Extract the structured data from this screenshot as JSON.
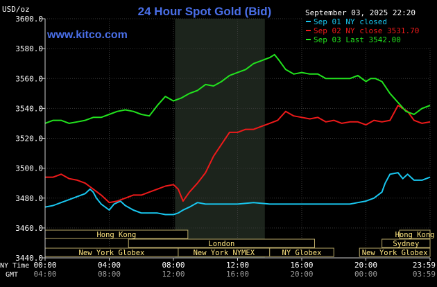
{
  "header": {
    "title": "24 Hour Spot Gold (Bid)",
    "unit": "USD/oz",
    "watermark": "www.kitco.com",
    "timestamp": "September 03, 2025 22:20"
  },
  "legend": [
    {
      "label": "Sep 01 NY closed",
      "color": "#19c7f0"
    },
    {
      "label": "Sep 02 NY close 3531.70",
      "color": "#ee1a1a"
    },
    {
      "label": "Sep 03 Last 3542.00",
      "color": "#22e31e"
    }
  ],
  "axis_labels": {
    "row1": "NY Time",
    "row2": "GMT"
  },
  "chart_data": {
    "type": "line",
    "title": "24 Hour Spot Gold (Bid)",
    "ylabel": "USD/oz",
    "ylim": [
      3440,
      3600
    ],
    "xlim": [
      0,
      24
    ],
    "grid": true,
    "legend_position": "top-right",
    "yticks": [
      "3600.0",
      "3580.0",
      "3560.0",
      "3540.0",
      "3520.0",
      "3500.0",
      "3480.0",
      "3460.0",
      "3440.0"
    ],
    "ytick_values": [
      3600,
      3580,
      3560,
      3540,
      3520,
      3500,
      3480,
      3460,
      3440
    ],
    "xtick_values": [
      0,
      4,
      8,
      12,
      16,
      20,
      24
    ],
    "xticks_ny": [
      "00:00",
      "04:00",
      "08:00",
      "12:00",
      "16:00",
      "20:00",
      "23:59"
    ],
    "xticks_gmt": [
      "04:00",
      "08:00",
      "12:00",
      "16:00",
      "20:00",
      "00:00",
      "03:59"
    ],
    "highlight_band": [
      8.1,
      13.7
    ],
    "series": [
      {
        "name": "Sep 01 NY closed",
        "color": "#19c7f0",
        "x": [
          0,
          0.5,
          1,
          1.5,
          2,
          2.5,
          2.8,
          3,
          3.2,
          3.5,
          4,
          4.3,
          4.7,
          5,
          5.5,
          6,
          6.5,
          7,
          7.5,
          8,
          8.3,
          8.6,
          9,
          9.5,
          10,
          11,
          12,
          13,
          14,
          15,
          16,
          17,
          18,
          19,
          19.5,
          20,
          20.5,
          21,
          21.2,
          21.5,
          22,
          22.3,
          22.6,
          23,
          23.5,
          24
        ],
        "y": [
          3474,
          3475,
          3477,
          3479,
          3481,
          3483,
          3486,
          3484,
          3480,
          3476,
          3472,
          3476,
          3478,
          3475,
          3472,
          3470,
          3470,
          3470,
          3469,
          3469,
          3470,
          3472,
          3474,
          3477,
          3476,
          3476,
          3476,
          3477,
          3476,
          3476,
          3476,
          3476,
          3476,
          3476,
          3477,
          3478,
          3480,
          3484,
          3490,
          3496,
          3497,
          3493,
          3496,
          3492,
          3492,
          3494
        ]
      },
      {
        "name": "Sep 02 NY close 3531.70",
        "color": "#ee1a1a",
        "x": [
          0,
          0.5,
          1,
          1.5,
          2,
          2.5,
          3,
          3.5,
          4,
          4.5,
          5,
          5.5,
          6,
          6.5,
          7,
          7.5,
          8,
          8.3,
          8.6,
          9,
          9.5,
          10,
          10.5,
          11,
          11.5,
          12,
          12.5,
          13,
          13.5,
          14,
          14.5,
          15,
          15.5,
          16,
          16.5,
          17,
          17.5,
          18,
          18.5,
          19,
          19.5,
          20,
          20.5,
          21,
          21.5,
          22,
          22.3,
          22.6,
          23,
          23.5,
          24
        ],
        "y": [
          3494,
          3494,
          3496,
          3493,
          3492,
          3490,
          3486,
          3482,
          3477,
          3478,
          3480,
          3482,
          3482,
          3484,
          3486,
          3488,
          3489,
          3486,
          3478,
          3484,
          3490,
          3497,
          3508,
          3516,
          3524,
          3524,
          3526,
          3526,
          3528,
          3530,
          3532,
          3538,
          3535,
          3534,
          3533,
          3534,
          3531,
          3532,
          3530,
          3531,
          3531,
          3529,
          3532,
          3531,
          3532,
          3542,
          3540,
          3538,
          3532,
          3530,
          3531
        ]
      },
      {
        "name": "Sep 03 Last 3542.00",
        "color": "#22e31e",
        "x": [
          0,
          0.5,
          1,
          1.5,
          2,
          2.5,
          3,
          3.5,
          4,
          4.5,
          5,
          5.5,
          6,
          6.5,
          7,
          7.5,
          8,
          8.5,
          9,
          9.5,
          10,
          10.5,
          11,
          11.5,
          12,
          12.5,
          13,
          13.5,
          14,
          14.3,
          14.6,
          15,
          15.5,
          16,
          16.5,
          17,
          17.5,
          18,
          18.5,
          19,
          19.5,
          20,
          20.3,
          20.6,
          21,
          21.5,
          22,
          22.5,
          23,
          23.5,
          24
        ],
        "y": [
          3530,
          3532,
          3532,
          3530,
          3531,
          3532,
          3534,
          3534,
          3536,
          3538,
          3539,
          3538,
          3536,
          3535,
          3542,
          3548,
          3545,
          3547,
          3550,
          3552,
          3556,
          3555,
          3558,
          3562,
          3564,
          3566,
          3570,
          3572,
          3574,
          3576,
          3572,
          3566,
          3563,
          3564,
          3563,
          3563,
          3560,
          3560,
          3560,
          3560,
          3562,
          3558,
          3560,
          3560,
          3558,
          3550,
          3544,
          3538,
          3536,
          3540,
          3542
        ]
      }
    ]
  },
  "sessions": {
    "row1": [
      {
        "label": "Hong Kong",
        "start": 0,
        "end": 8.9
      },
      {
        "label": "Hong Kong",
        "start": 22.1,
        "end": 24
      }
    ],
    "row2": [
      {
        "label": "London",
        "start": 5.2,
        "end": 16.8
      },
      {
        "label": "Sydney",
        "start": 21.0,
        "end": 24
      }
    ],
    "row3": [
      {
        "label": "New York Globex",
        "start": 0,
        "end": 8.3
      },
      {
        "label": "New York NYMEX",
        "start": 8.3,
        "end": 14.0
      },
      {
        "label": "NY Globex",
        "start": 14.0,
        "end": 18.0
      },
      {
        "label": "New York Globex",
        "start": 19.6,
        "end": 24
      }
    ]
  }
}
